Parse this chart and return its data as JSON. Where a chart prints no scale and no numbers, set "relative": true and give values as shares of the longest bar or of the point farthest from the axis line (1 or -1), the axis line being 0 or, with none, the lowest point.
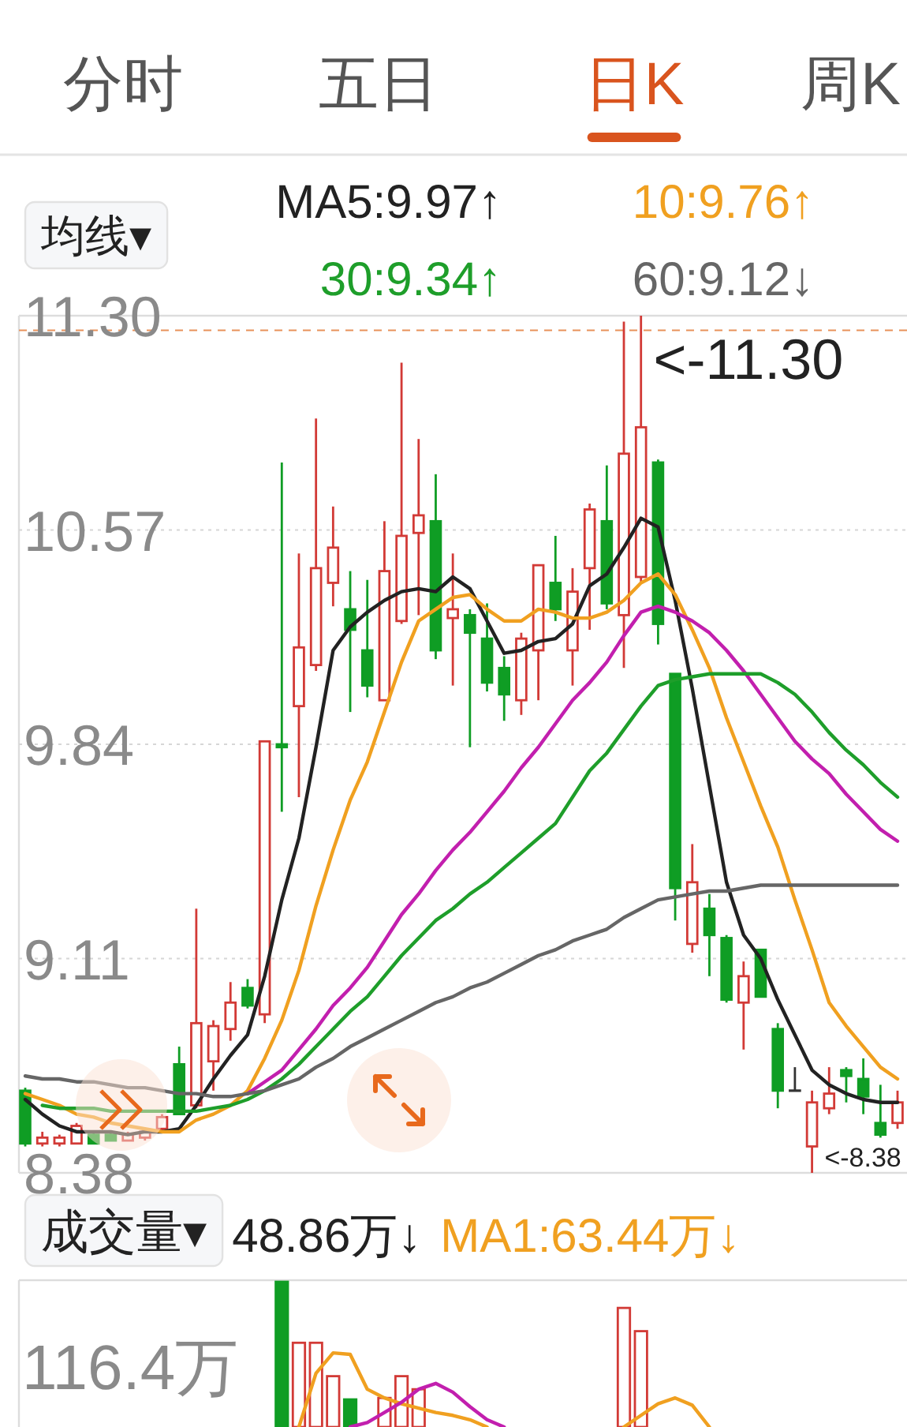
{
  "chart_data": [
    {
      "type": "other",
      "categories": [
        "分时",
        "五日",
        "日K",
        "周K"
      ],
      "colors": [
        "#555555",
        "#555555",
        "#d9541e",
        "#555555"
      ]
    },
    {
      "type": "candlestick",
      "legend_title": "均线▾",
      "legend": "top",
      "grid": "y",
      "categories": [
        null,
        null,
        null,
        null,
        null,
        null,
        null,
        null,
        null,
        null,
        null,
        null,
        null,
        null,
        null,
        null,
        null,
        null,
        null,
        null,
        null,
        null,
        null,
        null,
        null,
        null,
        null,
        null,
        null,
        null,
        null,
        null,
        null,
        null,
        null,
        null,
        null,
        null,
        null,
        null,
        null,
        null,
        null,
        null,
        null,
        null,
        null,
        null,
        null,
        null,
        null,
        null
      ],
      "ohlc": [
        [
          8.66,
          8.67,
          8.47,
          8.48
        ],
        [
          8.48,
          8.52,
          8.47,
          8.5
        ],
        [
          8.48,
          8.51,
          8.47,
          8.5
        ],
        [
          8.48,
          8.55,
          8.48,
          8.54
        ],
        [
          8.51,
          8.52,
          8.48,
          8.48
        ],
        [
          8.51,
          8.52,
          8.49,
          8.49
        ],
        [
          8.49,
          8.52,
          8.49,
          8.51
        ],
        [
          8.5,
          8.53,
          8.49,
          8.52
        ],
        [
          8.53,
          8.58,
          8.52,
          8.57
        ],
        [
          8.75,
          8.81,
          8.58,
          8.58
        ],
        [
          8.61,
          9.28,
          8.6,
          8.89
        ],
        [
          8.76,
          8.9,
          8.66,
          8.88
        ],
        [
          8.87,
          9.03,
          8.83,
          8.96
        ],
        [
          9.01,
          9.04,
          8.94,
          8.95
        ],
        [
          8.92,
          9.85,
          8.89,
          9.85
        ],
        [
          9.84,
          10.8,
          9.61,
          9.83
        ],
        [
          9.97,
          10.49,
          9.66,
          10.17
        ],
        [
          10.11,
          10.95,
          10.09,
          10.44
        ],
        [
          10.39,
          10.65,
          10.31,
          10.51
        ],
        [
          10.3,
          10.43,
          9.95,
          10.23
        ],
        [
          10.16,
          10.4,
          10.0,
          10.04
        ],
        [
          9.99,
          10.6,
          9.99,
          10.43
        ],
        [
          10.26,
          11.14,
          10.25,
          10.55
        ],
        [
          10.56,
          10.88,
          10.28,
          10.62
        ],
        [
          10.6,
          10.76,
          10.13,
          10.16
        ],
        [
          10.27,
          10.49,
          10.04,
          10.3
        ],
        [
          10.28,
          10.3,
          9.83,
          10.22
        ],
        [
          10.2,
          10.32,
          10.02,
          10.05
        ],
        [
          10.1,
          10.14,
          9.92,
          10.01
        ],
        [
          9.99,
          10.22,
          9.94,
          10.2
        ],
        [
          10.16,
          10.45,
          9.99,
          10.45
        ],
        [
          10.39,
          10.55,
          10.26,
          10.3
        ],
        [
          10.16,
          10.44,
          10.04,
          10.36
        ],
        [
          10.44,
          10.66,
          10.23,
          10.64
        ],
        [
          10.6,
          10.79,
          10.3,
          10.32
        ],
        [
          10.28,
          11.28,
          10.1,
          10.83
        ],
        [
          10.41,
          11.3,
          10.39,
          10.92
        ],
        [
          10.8,
          10.81,
          10.18,
          10.25
        ],
        [
          10.08,
          10.08,
          9.24,
          9.35
        ],
        [
          9.16,
          9.5,
          9.13,
          9.37
        ],
        [
          9.28,
          9.33,
          9.05,
          9.19
        ],
        [
          9.18,
          9.19,
          8.96,
          8.97
        ],
        [
          8.96,
          9.1,
          8.8,
          9.05
        ],
        [
          9.14,
          9.14,
          8.98,
          8.98
        ],
        [
          8.87,
          8.89,
          8.6,
          8.66
        ],
        [
          8.66,
          8.74,
          8.66,
          8.66
        ],
        [
          8.47,
          8.66,
          8.38,
          8.62
        ],
        [
          8.6,
          8.74,
          8.58,
          8.65
        ],
        [
          8.73,
          8.74,
          8.62,
          8.71
        ],
        [
          8.7,
          8.77,
          8.58,
          8.64
        ],
        [
          8.55,
          8.68,
          8.5,
          8.51
        ],
        [
          8.55,
          8.66,
          8.53,
          8.62
        ]
      ],
      "colors": [
        "#0f9d24",
        "#d23a36",
        "#d23a36",
        "#d23a36",
        "#0f9d24",
        "#0f9d24",
        "#d23a36",
        "#d23a36",
        "#d23a36",
        "#0f9d24",
        "#d23a36",
        "#d23a36",
        "#d23a36",
        "#0f9d24",
        "#d23a36",
        "#0f9d24",
        "#d23a36",
        "#d23a36",
        "#d23a36",
        "#0f9d24",
        "#0f9d24",
        "#d23a36",
        "#d23a36",
        "#d23a36",
        "#0f9d24",
        "#d23a36",
        "#0f9d24",
        "#0f9d24",
        "#0f9d24",
        "#d23a36",
        "#d23a36",
        "#0f9d24",
        "#d23a36",
        "#d23a36",
        "#0f9d24",
        "#d23a36",
        "#d23a36",
        "#0f9d24",
        "#0f9d24",
        "#d23a36",
        "#0f9d24",
        "#0f9d24",
        "#d23a36",
        "#0f9d24",
        "#0f9d24",
        "#333333",
        "#d23a36",
        "#d23a36",
        "#0f9d24",
        "#0f9d24",
        "#0f9d24",
        "#d23a36"
      ],
      "series": [
        {
          "name": "MA5:9.97↑",
          "type": "line",
          "color": "#222222",
          "values": [
            8.63,
            8.58,
            8.54,
            8.52,
            8.52,
            8.52,
            8.51,
            8.52,
            8.52,
            8.53,
            8.61,
            8.7,
            8.78,
            8.85,
            9.05,
            9.31,
            9.52,
            9.83,
            10.16,
            10.24,
            10.29,
            10.33,
            10.36,
            10.37,
            10.36,
            10.41,
            10.37,
            10.26,
            10.15,
            10.16,
            10.19,
            10.2,
            10.25,
            10.38,
            10.42,
            10.51,
            10.61,
            10.58,
            10.33,
            10.03,
            9.7,
            9.37,
            9.19,
            9.11,
            8.97,
            8.85,
            8.73,
            8.68,
            8.65,
            8.63,
            8.62,
            8.62
          ]
        },
        {
          "name": "10:9.76↑",
          "type": "line",
          "color": "#f0a020",
          "values": [
            8.65,
            8.63,
            8.61,
            8.58,
            8.57,
            8.55,
            8.54,
            8.53,
            8.52,
            8.52,
            8.56,
            8.58,
            8.61,
            8.66,
            8.77,
            8.9,
            9.07,
            9.29,
            9.48,
            9.65,
            9.78,
            9.95,
            10.12,
            10.26,
            10.3,
            10.34,
            10.35,
            10.3,
            10.26,
            10.26,
            10.3,
            10.29,
            10.27,
            10.27,
            10.29,
            10.33,
            10.39,
            10.42,
            10.35,
            10.23,
            10.1,
            9.93,
            9.78,
            9.63,
            9.49,
            9.31,
            9.14,
            8.96,
            8.88,
            8.81,
            8.74,
            8.7
          ]
        },
        {
          "type": "line",
          "color": "#c21fae",
          "values": [
            null,
            null,
            null,
            null,
            null,
            null,
            null,
            null,
            null,
            null,
            null,
            null,
            null,
            8.65,
            8.69,
            8.73,
            8.8,
            8.87,
            8.95,
            9.01,
            9.08,
            9.17,
            9.26,
            9.33,
            9.41,
            9.48,
            9.54,
            9.61,
            9.68,
            9.76,
            9.83,
            9.91,
            9.99,
            10.05,
            10.12,
            10.21,
            10.29,
            10.31,
            10.29,
            10.26,
            10.22,
            10.16,
            10.09,
            10.01,
            9.93,
            9.85,
            9.79,
            9.74,
            9.67,
            9.61,
            9.55,
            9.51
          ]
        },
        {
          "name": "30:9.34↑",
          "type": "line",
          "color": "#1e9e2a",
          "values": [
            null,
            8.61,
            8.6,
            8.6,
            8.6,
            8.59,
            8.59,
            8.59,
            8.59,
            8.59,
            8.59,
            8.6,
            8.61,
            8.63,
            8.66,
            8.7,
            8.75,
            8.81,
            8.87,
            8.93,
            8.98,
            9.05,
            9.12,
            9.18,
            9.24,
            9.28,
            9.33,
            9.37,
            9.42,
            9.47,
            9.52,
            9.57,
            9.66,
            9.75,
            9.81,
            9.89,
            9.97,
            10.04,
            10.06,
            10.07,
            10.08,
            10.08,
            10.08,
            10.08,
            10.05,
            10.01,
            9.95,
            9.88,
            9.82,
            9.77,
            9.71,
            9.66
          ]
        },
        {
          "name": "60:9.12↓",
          "type": "line",
          "color": "#666666",
          "values": [
            8.71,
            8.7,
            8.7,
            8.69,
            8.69,
            8.68,
            8.67,
            8.67,
            8.66,
            8.65,
            8.65,
            8.64,
            8.64,
            8.65,
            8.66,
            8.68,
            8.7,
            8.74,
            8.77,
            8.81,
            8.84,
            8.87,
            8.9,
            8.93,
            8.96,
            8.98,
            9.01,
            9.03,
            9.06,
            9.09,
            9.12,
            9.14,
            9.17,
            9.19,
            9.21,
            9.25,
            9.28,
            9.31,
            9.32,
            9.33,
            9.34,
            9.34,
            9.35,
            9.36,
            9.36,
            9.36,
            9.36,
            9.36,
            9.36,
            9.36,
            9.36,
            9.36
          ]
        }
      ],
      "ylim": [
        8.38,
        11.3
      ],
      "yticks": [
        {
          "value": 11.3,
          "label": "11.30"
        },
        10.57,
        9.84,
        9.11,
        8.38
      ],
      "ref_lines": [
        {
          "axis": "y",
          "value": 11.25,
          "color": "#e8915a",
          "line_style": "dashed"
        }
      ],
      "annotations": [
        "<-11.30",
        "<-8.38"
      ]
    },
    {
      "type": "bar",
      "relative": true,
      "legend_title": "成交量▾",
      "legend": "top",
      "categories": [
        null,
        null,
        null,
        null,
        null,
        null,
        null,
        null,
        null,
        null,
        null,
        null,
        null,
        null,
        null,
        null,
        null,
        null,
        null,
        null,
        null,
        null,
        null,
        null,
        null,
        null,
        null,
        null,
        null,
        null,
        null,
        null,
        null,
        null,
        null,
        null,
        null,
        null,
        null,
        null,
        null,
        null,
        null,
        null,
        null,
        null,
        null,
        null,
        null,
        null,
        null,
        null
      ],
      "values": [
        null,
        null,
        null,
        null,
        null,
        null,
        null,
        null,
        null,
        null,
        null,
        null,
        null,
        null,
        null,
        1.0,
        0.58,
        0.58,
        0.35,
        0.19,
        null,
        0.2,
        0.35,
        0.26,
        null,
        null,
        null,
        null,
        null,
        null,
        null,
        null,
        null,
        null,
        null,
        0.82,
        0.66,
        null,
        null,
        null,
        null,
        null,
        null,
        null,
        null,
        null,
        null,
        null,
        null,
        null,
        null,
        null
      ],
      "colors": [
        null,
        null,
        null,
        null,
        null,
        null,
        null,
        null,
        null,
        null,
        null,
        null,
        null,
        null,
        null,
        "#0f9d24",
        "#d23a36",
        "#d23a36",
        "#d23a36",
        "#0f9d24",
        null,
        "#d23a36",
        "#d23a36",
        "#d23a36",
        null,
        null,
        null,
        null,
        null,
        null,
        null,
        null,
        null,
        null,
        null,
        "#d23a36",
        "#d23a36",
        null,
        null,
        null,
        null,
        null,
        null,
        null,
        null,
        null,
        null,
        null,
        null,
        null,
        null,
        null
      ],
      "series": [
        {
          "name": "MA1:63.44万↓",
          "type": "line",
          "color": "#f0a020",
          "values": [
            null,
            null,
            null,
            null,
            null,
            null,
            null,
            null,
            null,
            null,
            null,
            null,
            null,
            null,
            null,
            null,
            0,
            0.37,
            0.51,
            0.5,
            0.26,
            0.2,
            0.16,
            0.13,
            0.1,
            0.08,
            0.05,
            0,
            null,
            null,
            null,
            null,
            null,
            null,
            null,
            0,
            0.08,
            0.16,
            0.2,
            0.15,
            0,
            null,
            null,
            null,
            null,
            null,
            null,
            null,
            null,
            null,
            null,
            null
          ]
        },
        {
          "type": "line",
          "color": "#c21fae",
          "values": [
            null,
            null,
            null,
            null,
            null,
            null,
            null,
            null,
            null,
            null,
            null,
            null,
            null,
            null,
            null,
            null,
            null,
            null,
            null,
            0,
            0.03,
            0.1,
            0.17,
            0.26,
            0.3,
            0.24,
            0.14,
            0.05,
            0,
            null,
            null,
            null,
            null,
            null,
            null,
            null,
            null,
            null,
            null,
            null,
            null,
            null,
            null,
            null,
            null,
            null,
            null,
            null,
            null,
            null,
            null,
            null
          ]
        }
      ],
      "annotations": [
        "48.86万↓",
        "116.4万"
      ]
    }
  ]
}
